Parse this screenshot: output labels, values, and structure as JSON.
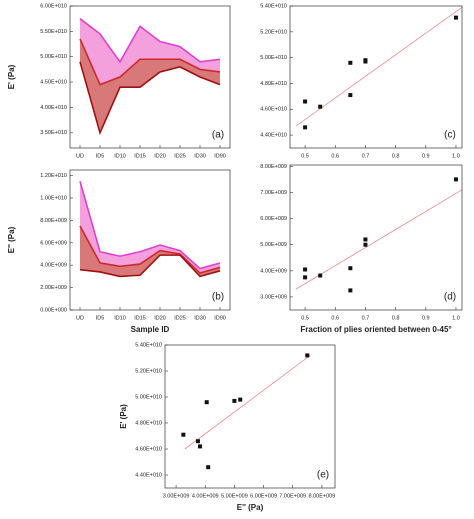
{
  "chart_data": [
    {
      "type": "area",
      "panel_label": "(a)",
      "y_label": "E' (Pa)",
      "categories": [
        "UD",
        "ID5",
        "ID10",
        "ID15",
        "ID20",
        "ID25",
        "ID30",
        "ID90"
      ],
      "series": [
        {
          "color": "#e040d0",
          "fill": "#f4a0dc",
          "values": [
            57500000000,
            54500000000,
            49000000000,
            56000000000,
            53000000000,
            52000000000,
            49000000000,
            49500000000
          ]
        },
        {
          "color": "#cc2a2a",
          "fill": "#d87878",
          "values": [
            53500000000,
            44500000000,
            46000000000,
            49500000000,
            49500000000,
            49500000000,
            47500000000,
            47000000000
          ]
        },
        {
          "color": "#a01010",
          "values": [
            49000000000,
            35000000000,
            44000000000,
            44000000000,
            47000000000,
            48000000000,
            46000000000,
            44500000000
          ]
        }
      ],
      "ylim": [
        32000000000,
        60000000000
      ],
      "yticks": [
        {
          "value": 35000000000,
          "label": "3.50E+010"
        },
        {
          "value": 40000000000,
          "label": "4.00E+010"
        },
        {
          "value": 45000000000,
          "label": "4.50E+010"
        },
        {
          "value": 50000000000,
          "label": "5.00E+010"
        },
        {
          "value": 55000000000,
          "label": "5.50E+010"
        },
        {
          "value": 60000000000,
          "label": "6.00E+010"
        }
      ]
    },
    {
      "type": "area",
      "panel_label": "(b)",
      "y_label": "E'' (Pa)",
      "x_label": "Sample ID",
      "categories": [
        "UD",
        "ID5",
        "ID10",
        "ID15",
        "ID20",
        "ID25",
        "ID30",
        "ID90"
      ],
      "series": [
        {
          "color": "#e040d0",
          "fill": "#f4a0dc",
          "values": [
            11500000000,
            5200000000,
            4800000000,
            5200000000,
            5800000000,
            5300000000,
            3700000000,
            4200000000
          ]
        },
        {
          "color": "#cc2a2a",
          "fill": "#d87878",
          "values": [
            7500000000,
            4200000000,
            3900000000,
            4100000000,
            5300000000,
            5000000000,
            3300000000,
            3800000000
          ]
        },
        {
          "color": "#a01010",
          "values": [
            3600000000,
            3400000000,
            3000000000,
            3100000000,
            4900000000,
            4900000000,
            3000000000,
            3500000000
          ]
        }
      ],
      "ylim": [
        0,
        12500000000
      ],
      "yticks": [
        {
          "value": 0,
          "label": "0.00E+000"
        },
        {
          "value": 2000000000,
          "label": "2.00E+009"
        },
        {
          "value": 4000000000,
          "label": "4.00E+009"
        },
        {
          "value": 6000000000,
          "label": "6.00E+009"
        },
        {
          "value": 8000000000,
          "label": "8.00E+009"
        },
        {
          "value": 10000000000,
          "label": "1.00E+010"
        },
        {
          "value": 12000000000,
          "label": "1.20E+010"
        }
      ]
    },
    {
      "type": "scatter",
      "panel_label": "(c)",
      "marker_color": "#111111",
      "x": [
        0.5,
        0.5,
        0.55,
        0.65,
        0.65,
        0.7,
        0.7,
        1.0
      ],
      "y": [
        46600000000,
        44600000000,
        46200000000,
        49600000000,
        47100000000,
        49800000000,
        49700000000,
        53100000000
      ],
      "trendline": {
        "color": "#f08a8a",
        "x": [
          0.47,
          1.02
        ],
        "y": [
          44700000000,
          53900000000
        ]
      },
      "xlim": [
        0.45,
        1.02
      ],
      "xticks": [
        0.5,
        0.6,
        0.7,
        0.8,
        0.9,
        {
          "value": 1,
          "label": "1.0"
        }
      ],
      "ylim": [
        43000000000,
        54000000000
      ],
      "yticks": [
        {
          "value": 44000000000,
          "label": "4.40E+010"
        },
        {
          "value": 46000000000,
          "label": "4.60E+010"
        },
        {
          "value": 48000000000,
          "label": "4.80E+010"
        },
        {
          "value": 50000000000,
          "label": "5.00E+010"
        },
        {
          "value": 52000000000,
          "label": "5.20E+010"
        },
        {
          "value": 54000000000,
          "label": "5.40E+010"
        }
      ]
    },
    {
      "type": "scatter",
      "panel_label": "(d)",
      "marker_color": "#111111",
      "x_label": "Fraction of plies oriented between 0-45°",
      "x": [
        0.5,
        0.5,
        0.55,
        0.65,
        0.65,
        0.7,
        0.7,
        1.0
      ],
      "y": [
        4050000000,
        3750000000,
        3820000000,
        4100000000,
        3250000000,
        5200000000,
        5000000000,
        7500000000
      ],
      "trendline": {
        "color": "#f08a8a",
        "x": [
          0.47,
          1.02
        ],
        "y": [
          3300000000,
          7100000000
        ]
      },
      "xlim": [
        0.45,
        1.02
      ],
      "xticks": [
        0.5,
        0.6,
        0.7,
        0.8,
        0.9,
        {
          "value": 1,
          "label": "1.0"
        }
      ],
      "ylim": [
        2500000000,
        8050000000
      ],
      "yticks": [
        {
          "value": 3000000000,
          "label": "3.00E+009"
        },
        {
          "value": 4000000000,
          "label": "4.00E+009"
        },
        {
          "value": 5000000000,
          "label": "5.00E+009"
        },
        {
          "value": 6000000000,
          "label": "6.00E+009"
        },
        {
          "value": 7000000000,
          "label": "7.00E+009"
        },
        {
          "value": 8000000000,
          "label": "8.00E+009"
        }
      ]
    },
    {
      "type": "scatter",
      "panel_label": "(e)",
      "marker_color": "#111111",
      "x_label": "E'' (Pa)",
      "y_label": "E' (Pa)",
      "x": [
        3250000000,
        3750000000,
        3820000000,
        4050000000,
        4100000000,
        5000000000,
        5200000000,
        7500000000
      ],
      "y": [
        47100000000,
        46600000000,
        46200000000,
        49600000000,
        44600000000,
        49700000000,
        49800000000,
        53200000000
      ],
      "trendline": {
        "color": "#f08a8a",
        "x": [
          3300000000,
          7600000000
        ],
        "y": [
          46000000000,
          53200000000
        ]
      },
      "xlim": [
        2620000000,
        8450000000
      ],
      "xticks": [
        {
          "value": 3000000000,
          "label": "3.00E+009"
        },
        {
          "value": 4000000000,
          "label": "4.00E+009"
        },
        {
          "value": 5000000000,
          "label": "5.00E+009"
        },
        {
          "value": 6000000000,
          "label": "6.00E+009"
        },
        {
          "value": 7000000000,
          "label": "7.00E+009"
        },
        {
          "value": 8000000000,
          "label": "8.00E+009"
        }
      ],
      "ylim": [
        43000000000,
        54000000000
      ],
      "yticks": [
        {
          "value": 44000000000,
          "label": "4.40E+010"
        },
        {
          "value": 46000000000,
          "label": "4.60E+010"
        },
        {
          "value": 48000000000,
          "label": "4.80E+010"
        },
        {
          "value": 50000000000,
          "label": "5.00E+010"
        },
        {
          "value": 52000000000,
          "label": "5.20E+010"
        },
        {
          "value": 54000000000,
          "label": "5.40E+010"
        }
      ]
    }
  ]
}
